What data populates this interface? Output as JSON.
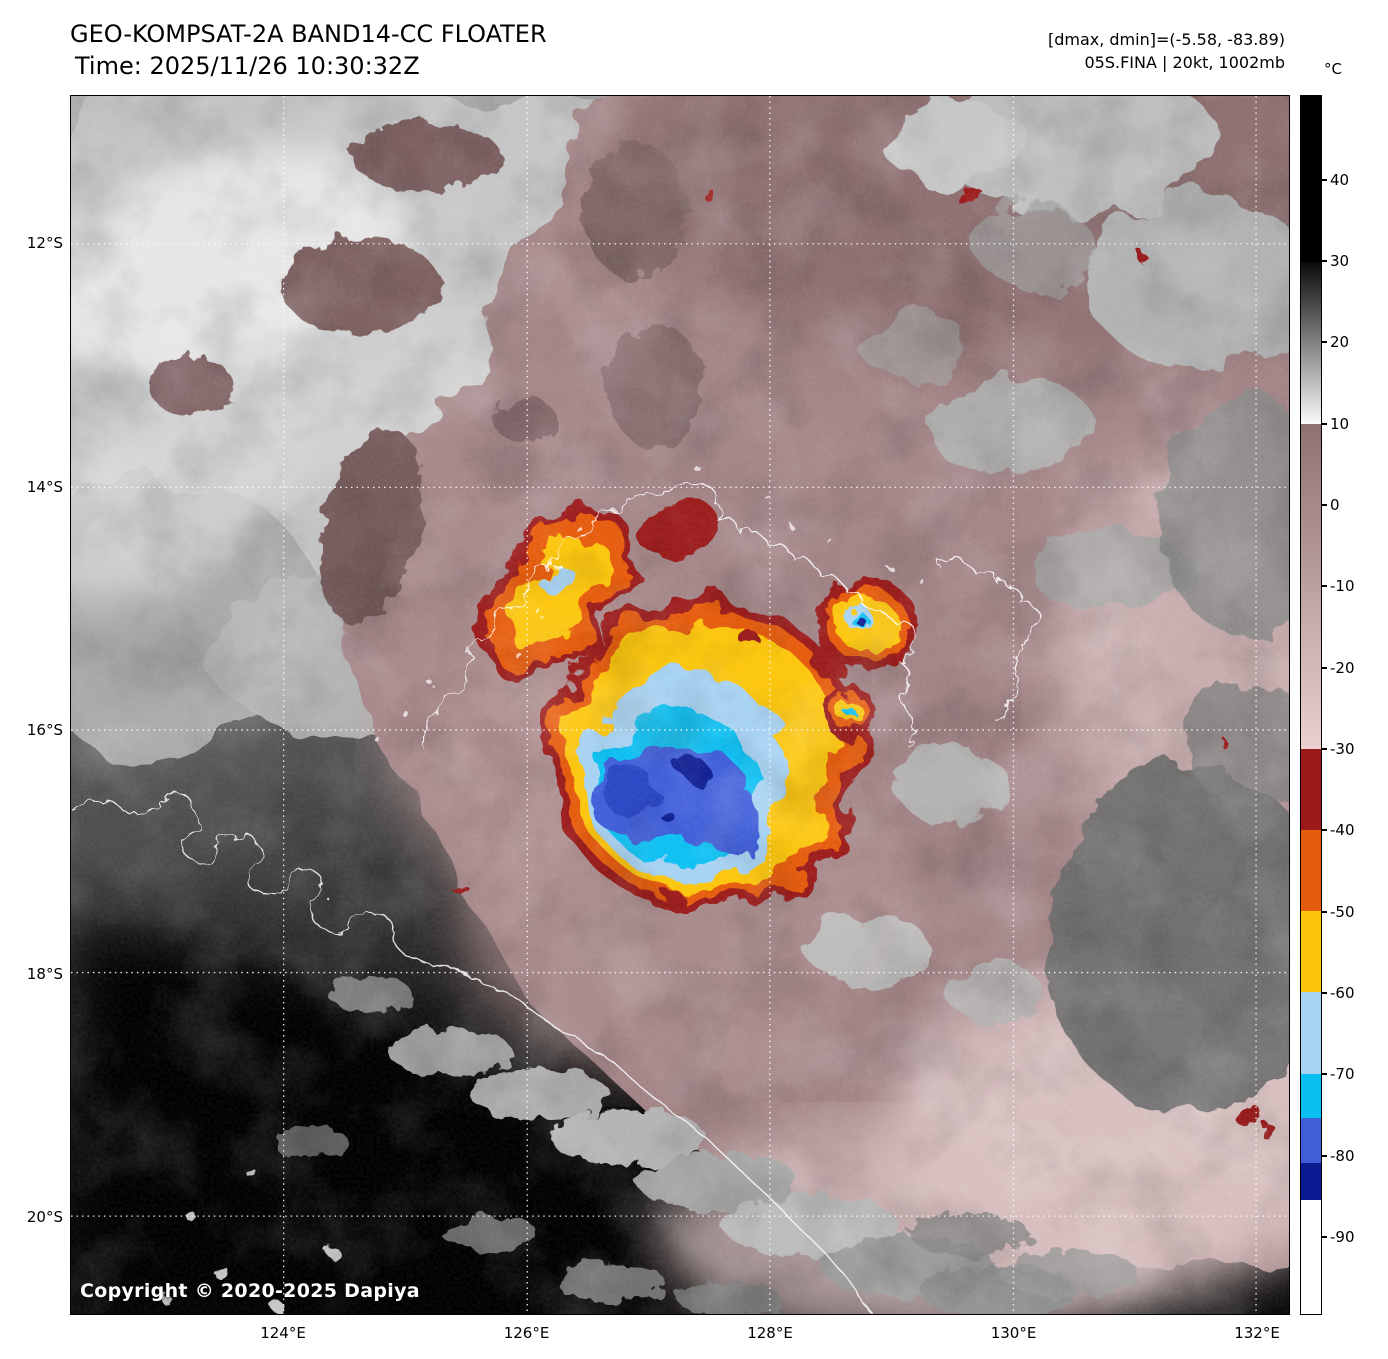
{
  "header": {
    "title": "GEO-KOMPSAT-2A BAND14-CC FLOATER",
    "time": "Time: 2025/11/26 10:30:32Z",
    "range_label": "[dmax, dmin]=(-5.58, -83.89)",
    "storm_label": "05S.FINA | 20kt, 1002mb"
  },
  "geo": {
    "lat_ticks": [
      "12°S",
      "14°S",
      "16°S",
      "18°S",
      "20°S"
    ],
    "lon_ticks": [
      "124°E",
      "126°E",
      "128°E",
      "130°E",
      "132°E"
    ]
  },
  "colorbar": {
    "unit": "°C",
    "ticks": [
      40,
      30,
      20,
      10,
      0,
      -10,
      -20,
      -30,
      -40,
      -50,
      -60,
      -70,
      -80,
      -90
    ],
    "segments": [
      {
        "name": "hot-black",
        "from": 50.4,
        "to": 30,
        "color": "#000000"
      },
      {
        "name": "gray-ramp",
        "from": 30,
        "to": 10,
        "color": "#0a0a0a",
        "color2": "#fbfbfb"
      },
      {
        "name": "warm-brown",
        "from": 10,
        "to": -30,
        "color": "#8e7071",
        "color2": "#ead2d2"
      },
      {
        "name": "dark-red",
        "from": -30,
        "to": -40,
        "color": "#9c1a1a"
      },
      {
        "name": "orange",
        "from": -40,
        "to": -50,
        "color": "#e65c0e"
      },
      {
        "name": "yellow",
        "from": -50,
        "to": -60,
        "color": "#fcc60a"
      },
      {
        "name": "light-blue",
        "from": -60,
        "to": -70,
        "color": "#a7d2f2"
      },
      {
        "name": "cyan",
        "from": -70,
        "to": -75.5,
        "color": "#0ac0f2"
      },
      {
        "name": "blue",
        "from": -75.5,
        "to": -81,
        "color": "#3f5fd9"
      },
      {
        "name": "dark-blue",
        "from": -81,
        "to": -85.5,
        "color": "#0a1a90"
      },
      {
        "name": "cold-white",
        "from": -85.5,
        "to": -99.6,
        "color": "#ffffff"
      }
    ]
  },
  "map": {
    "copyright": "Copyright © 2020-2025 Dapiya"
  }
}
